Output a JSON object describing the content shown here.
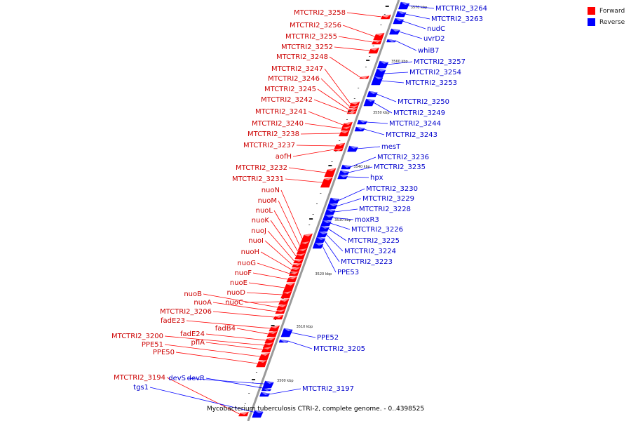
{
  "colors": {
    "forward": "#ff0000",
    "reverse": "#0000ff",
    "backbone": "#9a9a9a"
  },
  "legend": [
    {
      "label": "Forward",
      "color": "#ff0000"
    },
    {
      "label": "Reverse",
      "color": "#0000ff"
    }
  ],
  "caption": "Mycobacterium tuberculosis CTRI-2, complete genome. - 0..4398525",
  "ticks": [
    "3570 kbp",
    "3560 kbp",
    "3550 kbp",
    "3540 kbp",
    "3530 kbp",
    "3520 kbp",
    "3510 kbp",
    "3500 kbp"
  ],
  "forward_genes": [
    "MTCTRI2_3258",
    "MTCTRI2_3256",
    "MTCTRI2_3255",
    "MTCTRI2_3252",
    "MTCTRI2_3248",
    "MTCTRI2_3247",
    "MTCTRI2_3246",
    "MTCTRI2_3245",
    "MTCTRI2_3242",
    "MTCTRI2_3241",
    "MTCTRI2_3240",
    "MTCTRI2_3238",
    "MTCTRI2_3237",
    "aofH",
    "MTCTRI2_3232",
    "MTCTRI2_3231",
    "nuoN",
    "nuoM",
    "nuoL",
    "nuoK",
    "nuoJ",
    "nuoI",
    "nuoH",
    "nuoG",
    "nuoF",
    "nuoE",
    "nuoD",
    "nuoC",
    "nuoB",
    "nuoA",
    "MTCTRI2_3206",
    "fadE23",
    "fadB4",
    "fadE24",
    "MTCTRI2_3200",
    "pflA",
    "PPE51",
    "PPE50",
    "MTCTRI2_3194"
  ],
  "reverse_genes": [
    "MTCTRI2_3264",
    "MTCTRI2_3263",
    "nudC",
    "uvrD2",
    "whiB7",
    "MTCTRI2_3257",
    "MTCTRI2_3254",
    "MTCTRI2_3253",
    "MTCTRI2_3250",
    "MTCTRI2_3249",
    "MTCTRI2_3244",
    "MTCTRI2_3243",
    "mesT",
    "MTCTRI2_3236",
    "MTCTRI2_3235",
    "hpx",
    "MTCTRI2_3230",
    "MTCTRI2_3229",
    "MTCTRI2_3228",
    "moxR3",
    "MTCTRI2_3226",
    "MTCTRI2_3225",
    "MTCTRI2_3224",
    "MTCTRI2_3223",
    "PPE53",
    "PPE52",
    "MTCTRI2_3205",
    "devS",
    "devR",
    "tgs1",
    "MTCTRI2_3197"
  ]
}
